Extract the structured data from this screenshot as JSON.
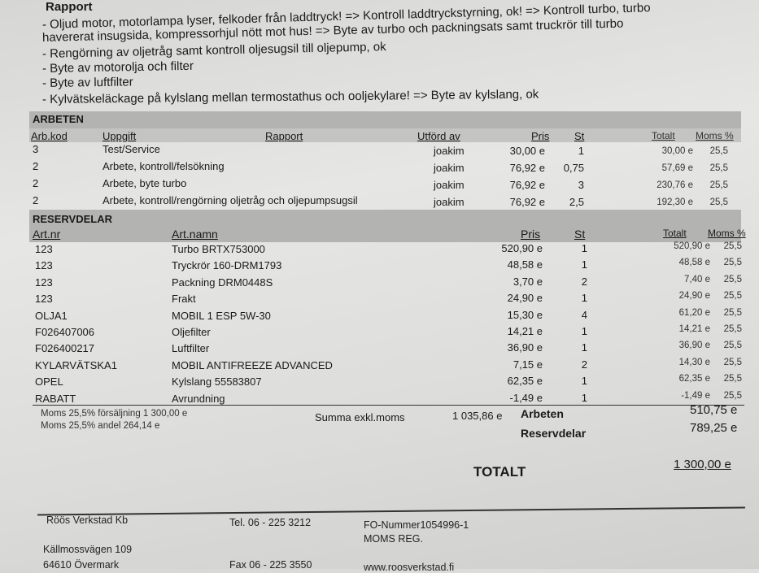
{
  "report": {
    "title": "Rapport",
    "lines": [
      "- Oljud motor, motorlampa lyser, felkoder från laddtryck! => Kontroll laddtryckstyrning, ok! => Kontroll turbo, turbo",
      "havererat insugsida, kompressorhjul nött mot hus! => Byte av turbo och packningsats samt truckrör till turbo",
      "- Rengörning av oljetråg samt kontroll oljesugsil till oljepump, ok",
      "- Byte av motorolja och filter",
      "- Byte av luftfilter",
      "- Kylvätskeläckage på kylslang mellan termostathus och ooljekylare! => Byte av kylslang, ok"
    ]
  },
  "work": {
    "section": "ARBETEN",
    "headers": {
      "code": "Arb.kod",
      "task": "Uppgift",
      "report": "Rapport",
      "done_by": "Utförd av",
      "price": "Pris",
      "qty": "St",
      "total": "Totalt",
      "vat": "Moms %"
    },
    "rows": [
      {
        "code": "3",
        "task": "Test/Service",
        "done_by": "joakim",
        "price": "30,00 e",
        "qty": "1",
        "total": "30,00 e",
        "vat": "25,5"
      },
      {
        "code": "2",
        "task": "Arbete, kontroll/felsökning",
        "done_by": "joakim",
        "price": "76,92 e",
        "qty": "0,75",
        "total": "57,69 e",
        "vat": "25,5"
      },
      {
        "code": "2",
        "task": "Arbete, byte turbo",
        "done_by": "joakim",
        "price": "76,92 e",
        "qty": "3",
        "total": "230,76 e",
        "vat": "25,5"
      },
      {
        "code": "2",
        "task": "Arbete, kontroll/rengörning oljetråg och oljepumpsugsil",
        "done_by": "joakim",
        "price": "76,92 e",
        "qty": "2,5",
        "total": "192,30 e",
        "vat": "25,5"
      }
    ]
  },
  "parts": {
    "section": "RESERVDELAR",
    "headers": {
      "art_no": "Art.nr",
      "name": "Art.namn",
      "price": "Pris",
      "qty": "St",
      "total": "Totalt",
      "vat": "Moms %"
    },
    "rows": [
      {
        "art_no": "123",
        "name": "Turbo BRTX753000",
        "price": "520,90 e",
        "qty": "1",
        "total": "520,90 e",
        "vat": "25,5"
      },
      {
        "art_no": "123",
        "name": "Tryckrör 160-DRM1793",
        "price": "48,58 e",
        "qty": "1",
        "total": "48,58 e",
        "vat": "25,5"
      },
      {
        "art_no": "123",
        "name": "Packning DRM0448S",
        "price": "3,70 e",
        "qty": "2",
        "total": "7,40 e",
        "vat": "25,5"
      },
      {
        "art_no": "123",
        "name": "Frakt",
        "price": "24,90 e",
        "qty": "1",
        "total": "24,90 e",
        "vat": "25,5"
      },
      {
        "art_no": "OLJA1",
        "name": "MOBIL 1 ESP 5W-30",
        "price": "15,30 e",
        "qty": "4",
        "total": "61,20 e",
        "vat": "25,5"
      },
      {
        "art_no": "F026407006",
        "name": "Oljefilter",
        "price": "14,21 e",
        "qty": "1",
        "total": "14,21 e",
        "vat": "25,5"
      },
      {
        "art_no": "F026400217",
        "name": "Luftfilter",
        "price": "36,90 e",
        "qty": "1",
        "total": "36,90 e",
        "vat": "25,5"
      },
      {
        "art_no": "KYLARVÄTSKA1",
        "name": "MOBIL ANTIFREEZE ADVANCED",
        "price": "7,15 e",
        "qty": "2",
        "total": "14,30 e",
        "vat": "25,5"
      },
      {
        "art_no": "OPEL",
        "name": "Kylslang 55583807",
        "price": "62,35 e",
        "qty": "1",
        "total": "62,35 e",
        "vat": "25,5"
      },
      {
        "art_no": "RABATT",
        "name": "Avrundning",
        "price": "-1,49 e",
        "qty": "1",
        "total": "-1,49 e",
        "vat": "25,5"
      }
    ]
  },
  "summary": {
    "vat_sales": "Moms 25,5% försäljning 1 300,00 e",
    "vat_share": "Moms 25,5% andel 264,14 e",
    "excl_label": "Summa exkl.moms",
    "excl_value": "1 035,86 e",
    "work_label": "Arbeten",
    "work_value": "510,75 e",
    "parts_label": "Reservdelar",
    "parts_value": "789,25 e",
    "total_label": "TOTALT",
    "total_value": "1 300,00 e"
  },
  "footer": {
    "company": "Röös Verkstad Kb",
    "street": "Källmossvägen 109",
    "city": "64610 Övermark",
    "tel": "Tel.  06 - 225 3212",
    "fax": "Fax  06 - 225 3550",
    "fo": "FO-Nummer1054996-1",
    "vat_reg": "MOMS REG.",
    "web": "www.roosverkstad.fi"
  }
}
